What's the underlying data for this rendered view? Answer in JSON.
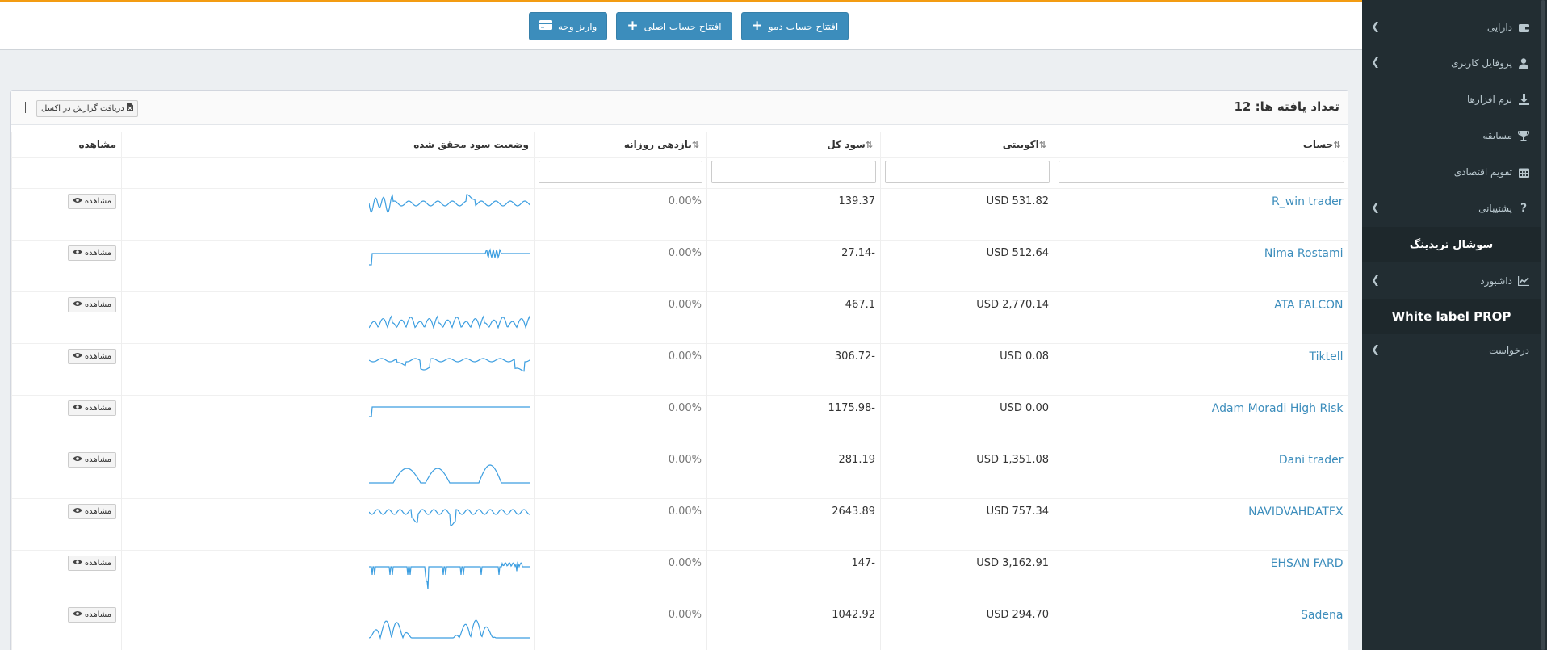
{
  "top_buttons": [
    {
      "label": "افتتاح حساب دمو",
      "icon": "plus-icon"
    },
    {
      "label": "افتتاح حساب اصلی",
      "icon": "plus-icon"
    },
    {
      "label": "واریز وجه",
      "icon": "credit-card-icon"
    }
  ],
  "sidebar": {
    "items": [
      {
        "label": "دارایی",
        "icon": "wallet-icon",
        "has_children": true
      },
      {
        "label": "پروفایل کاربری",
        "icon": "user-icon",
        "has_children": true
      },
      {
        "label": "نرم افزارها",
        "icon": "download-icon",
        "has_children": false
      },
      {
        "label": "مسابقه",
        "icon": "trophy-icon",
        "has_children": false
      },
      {
        "label": "تقویم اقتصادی",
        "icon": "calendar-icon",
        "has_children": false
      },
      {
        "label": "پشتیبانی",
        "icon": "question-icon",
        "has_children": true
      },
      {
        "label": "سوشال تریدینگ",
        "icon": "",
        "has_children": false,
        "active": true
      },
      {
        "label": "داشبورد",
        "icon": "chart-icon",
        "has_children": true
      },
      {
        "label": "White label PROP",
        "icon": "",
        "has_children": false,
        "active": true
      },
      {
        "label": "درخواست",
        "icon": "",
        "has_children": true
      }
    ]
  },
  "panel": {
    "count_label": "تعداد یافته ها:",
    "count_value": "12",
    "excel_label": "دریافت گزارش در اکسل"
  },
  "table": {
    "headers": {
      "account": "حساب",
      "equity": "اکوییتی",
      "profit": "سود کل",
      "daily": "بازدهی روزانه",
      "status": "وضعیت سود محقق شده",
      "view": "مشاهده"
    },
    "view_label": "مشاهده",
    "rows": [
      {
        "account": "R_win trader",
        "equity": "USD 531.82",
        "profit": "139.37",
        "daily": "0.00%"
      },
      {
        "account": "Nima Rostami",
        "equity": "USD 512.64",
        "profit": "27.14-",
        "daily": "0.00%"
      },
      {
        "account": "ATA FALCON",
        "equity": "USD 2,770.14",
        "profit": "467.1",
        "daily": "0.00%"
      },
      {
        "account": "Tiktell",
        "equity": "USD 0.08",
        "profit": "306.72-",
        "daily": "0.00%"
      },
      {
        "account": "Adam Moradi High Risk",
        "equity": "USD 0.00",
        "profit": "1175.98-",
        "daily": "0.00%"
      },
      {
        "account": "Dani trader",
        "equity": "USD 1,351.08",
        "profit": "281.19",
        "daily": "0.00%"
      },
      {
        "account": "NAVIDVAHDATFX",
        "equity": "USD 757.34",
        "profit": "2643.89",
        "daily": "0.00%"
      },
      {
        "account": "EHSAN FARD",
        "equity": "USD 3,162.91",
        "profit": "147-",
        "daily": "0.00%"
      },
      {
        "account": "Sadena",
        "equity": "USD 294.70",
        "profit": "1042.92",
        "daily": "0.00%"
      }
    ]
  },
  "colors": {
    "accent": "#3c8dbc",
    "topline": "#f39c12",
    "sidebar": "#222d32",
    "spark": "#3c9ee0"
  }
}
